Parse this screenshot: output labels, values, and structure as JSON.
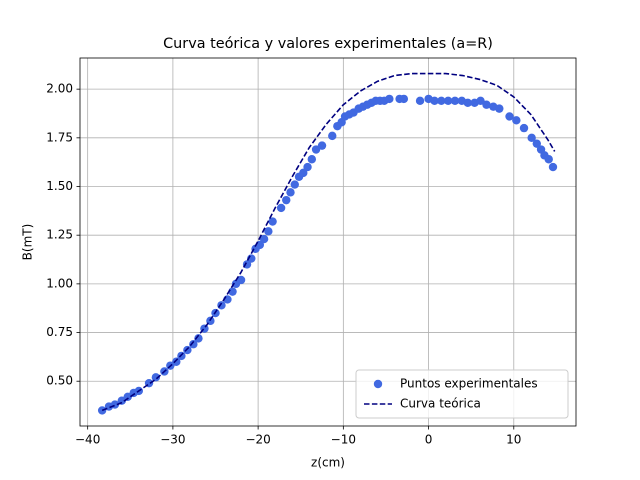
{
  "chart_data": {
    "type": "scatter",
    "title": "Curva teórica y valores experimentales (a=R)",
    "xlabel": "z(cm)",
    "ylabel": "B(mT)",
    "xlim": [
      -40.9,
      17.3
    ],
    "ylim": [
      0.27,
      2.16
    ],
    "xticks": [
      {
        "value": -40,
        "label": "−40"
      },
      {
        "value": -30,
        "label": "−30"
      },
      {
        "value": -20,
        "label": "−20"
      },
      {
        "value": -10,
        "label": "−10"
      },
      0,
      10
    ],
    "yticks": [
      {
        "value": 0.5,
        "label": "0.50"
      },
      {
        "value": 0.75,
        "label": "0.75"
      },
      {
        "value": 1,
        "label": "1.00"
      },
      {
        "value": 1.25,
        "label": "1.25"
      },
      {
        "value": 1.5,
        "label": "1.50"
      },
      {
        "value": 1.75,
        "label": "1.75"
      },
      {
        "value": 2,
        "label": "2.00"
      }
    ],
    "grid": true,
    "legend": "lower right",
    "series": [
      {
        "name": "Puntos experimentales",
        "type": "scatter",
        "color": "#4169e1",
        "x": [
          -38.3,
          -37.5,
          -36.8,
          -36,
          -35.3,
          -34.6,
          -34,
          -32.8,
          -32,
          -31,
          -30.3,
          -29.6,
          -29,
          -28.3,
          -27.6,
          -27,
          -26.3,
          -25.6,
          -25,
          -24.3,
          -23.6,
          -23,
          -22.6,
          -22,
          -21.3,
          -20.8,
          -20.3,
          -19.8,
          -19.3,
          -18.8,
          -18.3,
          -17.3,
          -16.7,
          -16.2,
          -15.7,
          -15.2,
          -14.7,
          -14.2,
          -13.7,
          -13.2,
          -12.5,
          -11.3,
          -10.7,
          -10.2,
          -9.8,
          -9.3,
          -8.8,
          -8.2,
          -7.7,
          -7.2,
          -6.7,
          -6.2,
          -5.7,
          -5.2,
          -4.6,
          -3.4,
          -2.9,
          -1,
          0,
          0.7,
          1.5,
          2.3,
          3.1,
          3.9,
          4.6,
          5.4,
          6.1,
          6.8,
          7.6,
          8.3,
          9.5,
          10.3,
          11.2,
          12.1,
          12.7,
          13.2,
          13.6,
          14.1,
          14.6
        ],
        "values": [
          0.35,
          0.37,
          0.38,
          0.4,
          0.42,
          0.44,
          0.45,
          0.49,
          0.52,
          0.55,
          0.58,
          0.6,
          0.63,
          0.66,
          0.69,
          0.72,
          0.77,
          0.81,
          0.85,
          0.89,
          0.92,
          0.96,
          1,
          1.02,
          1.1,
          1.13,
          1.18,
          1.2,
          1.23,
          1.27,
          1.32,
          1.39,
          1.43,
          1.47,
          1.51,
          1.55,
          1.57,
          1.6,
          1.64,
          1.69,
          1.71,
          1.76,
          1.81,
          1.83,
          1.86,
          1.87,
          1.88,
          1.9,
          1.91,
          1.92,
          1.93,
          1.94,
          1.94,
          1.94,
          1.95,
          1.95,
          1.95,
          1.94,
          1.95,
          1.94,
          1.94,
          1.94,
          1.94,
          1.94,
          1.93,
          1.93,
          1.94,
          1.92,
          1.91,
          1.9,
          1.86,
          1.84,
          1.8,
          1.75,
          1.72,
          1.69,
          1.66,
          1.64,
          1.6
        ]
      },
      {
        "name": "Curva teórica",
        "type": "line",
        "color": "#000080",
        "x": [
          -38.3,
          -36,
          -34,
          -32,
          -30,
          -28,
          -26,
          -24,
          -22,
          -20,
          -18,
          -16,
          -14,
          -12,
          -10,
          -8,
          -6,
          -4,
          -2,
          0,
          2,
          4,
          6,
          8,
          10,
          12,
          14,
          14.8
        ],
        "values": [
          0.35,
          0.39,
          0.45,
          0.51,
          0.59,
          0.68,
          0.79,
          0.92,
          1.06,
          1.22,
          1.39,
          1.55,
          1.7,
          1.82,
          1.92,
          1.99,
          2.04,
          2.07,
          2.08,
          2.08,
          2.08,
          2.07,
          2.05,
          2.02,
          1.96,
          1.87,
          1.74,
          1.68
        ]
      }
    ]
  }
}
